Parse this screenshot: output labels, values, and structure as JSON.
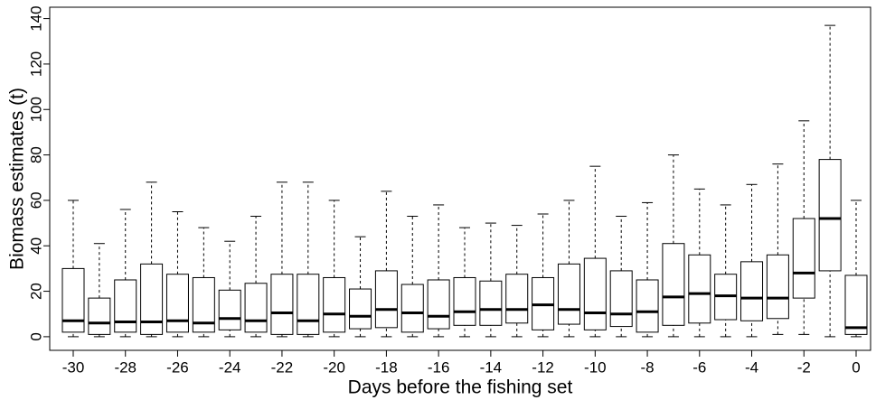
{
  "chart_data": {
    "type": "box",
    "x_label": "Days before the fishing set",
    "y_label": "Biomass estimates (t)",
    "categories": [
      "-30",
      null,
      "-28",
      null,
      "-26",
      null,
      "-24",
      null,
      "-22",
      null,
      "-20",
      null,
      "-18",
      null,
      "-16",
      null,
      "-14",
      null,
      "-12",
      null,
      "-10",
      null,
      "-8",
      null,
      "-6",
      null,
      "-4",
      null,
      "-2",
      null,
      "0"
    ],
    "min": [
      0,
      0,
      0,
      0,
      0,
      0,
      0,
      0,
      0,
      0,
      0,
      0,
      0,
      0,
      0,
      0,
      0,
      0,
      0,
      0,
      0,
      0,
      0,
      0,
      0,
      0,
      0,
      1,
      1,
      0,
      0
    ],
    "q1": [
      2,
      1,
      2,
      1,
      2,
      2,
      3,
      2,
      1,
      1,
      2,
      3.5,
      4,
      2,
      3.5,
      5,
      5,
      6,
      3,
      5.5,
      3,
      4.5,
      2,
      5,
      6,
      7.5,
      7,
      8,
      17,
      29,
      1
    ],
    "median": [
      7,
      6,
      6.5,
      6.5,
      7,
      6,
      8,
      7,
      10.5,
      7,
      10,
      9,
      12,
      10.5,
      9,
      11,
      12,
      12,
      14,
      12,
      10.5,
      10,
      11,
      17.5,
      19,
      18,
      17,
      17,
      28,
      52,
      4
    ],
    "q3": [
      30,
      17,
      25,
      32,
      27.5,
      26,
      20.5,
      23.5,
      27.5,
      27.5,
      26,
      21,
      29,
      23,
      25,
      26,
      24.5,
      27.5,
      26,
      32,
      34.5,
      29,
      25,
      41,
      36,
      27.5,
      33,
      36,
      52,
      78,
      27
    ],
    "max": [
      60,
      41,
      56,
      68,
      55,
      48,
      42,
      53,
      68,
      68,
      60,
      44,
      64,
      53,
      58,
      48,
      50,
      49,
      54,
      60,
      75,
      53,
      59,
      80,
      65,
      58,
      67,
      76,
      95,
      137,
      60
    ],
    "ylim": [
      -6,
      145
    ],
    "yticks": [
      0,
      20,
      40,
      60,
      80,
      100,
      120,
      140
    ],
    "color": "#000000"
  }
}
